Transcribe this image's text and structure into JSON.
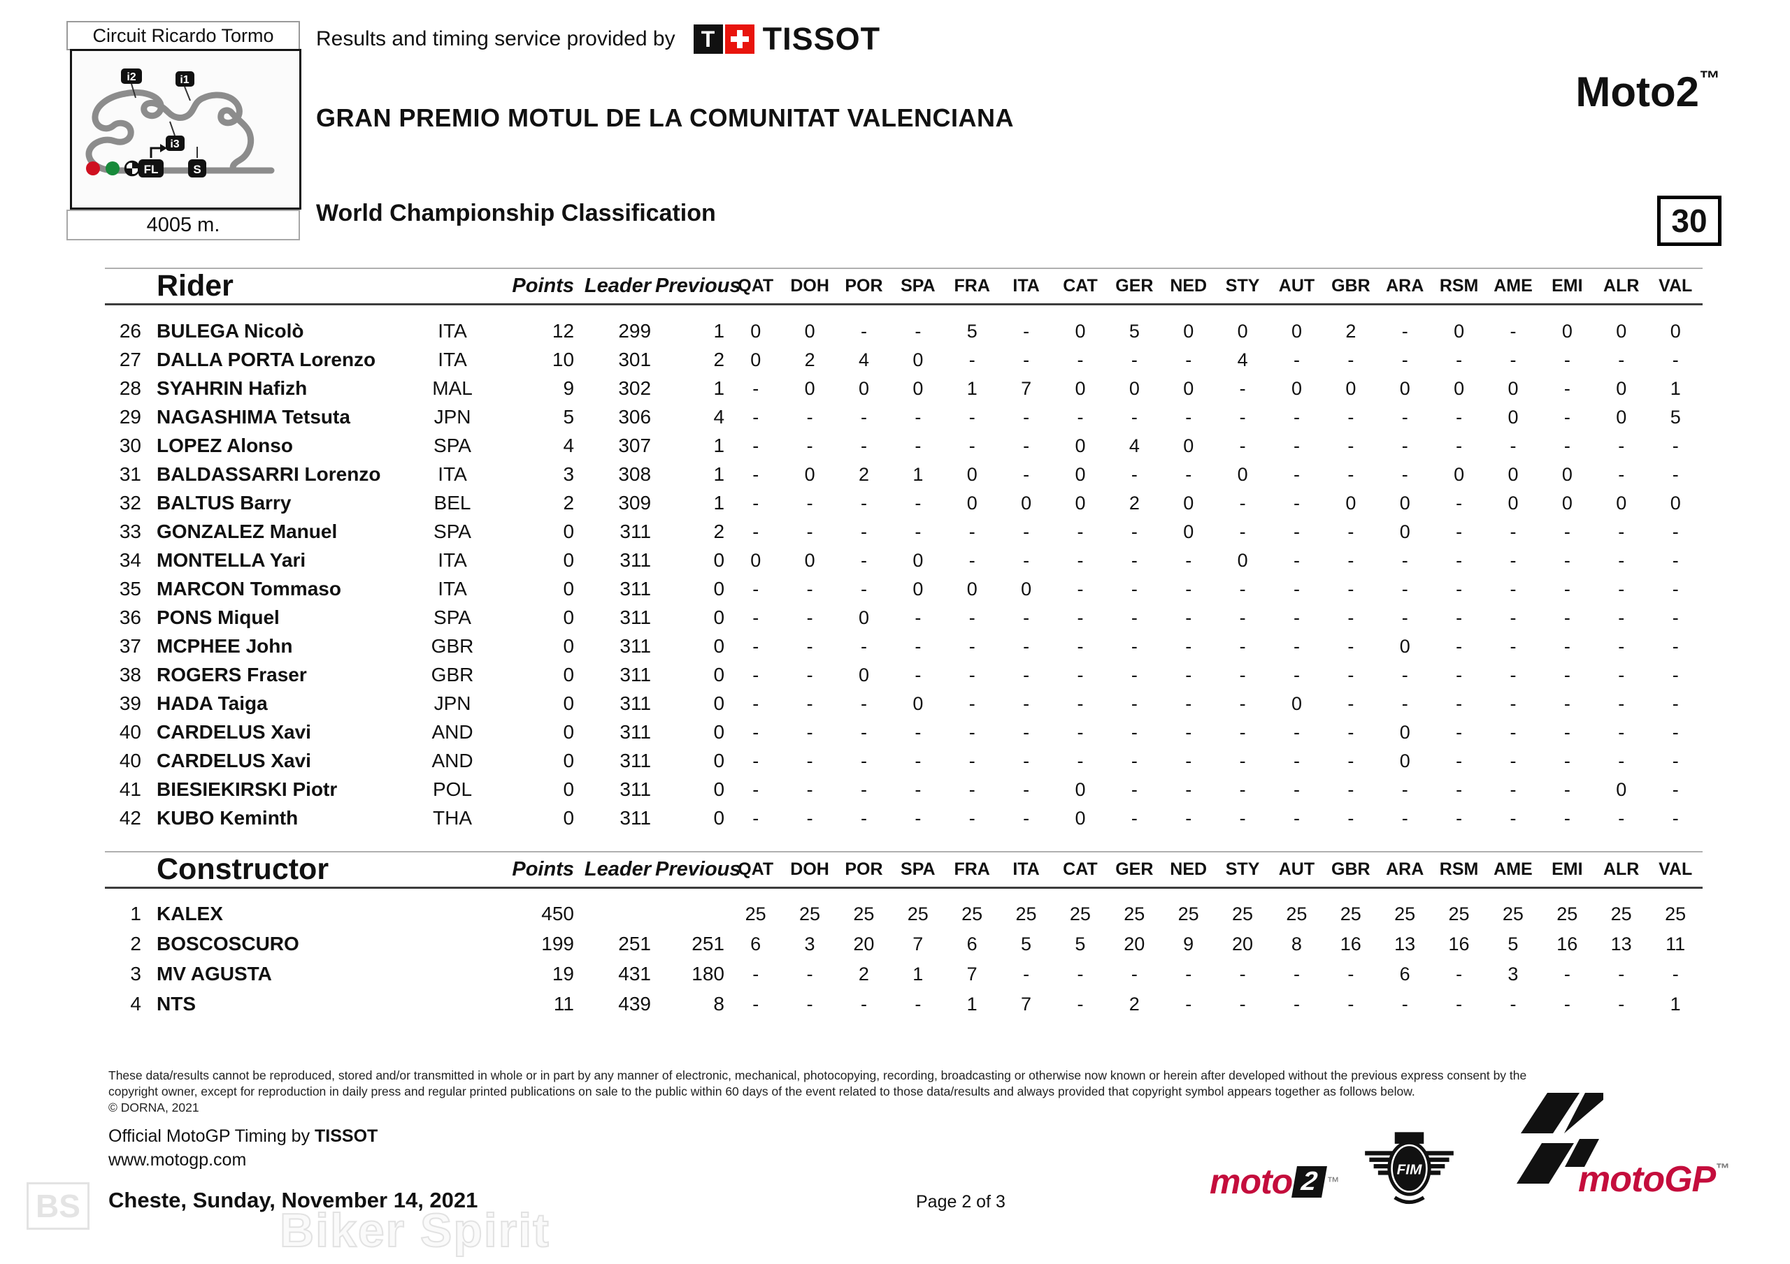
{
  "colors": {
    "tissot_red": "#e8140c",
    "brand_crimson": "#c40d3c",
    "track_gray": "#8c8c8c"
  },
  "header": {
    "circuit_name": "Circuit Ricardo Tormo",
    "track_length": "4005 m.",
    "provided_by": "Results and timing service provided by",
    "tissot_t": "T",
    "tissot_brand": "TISSOT",
    "event_title": "GRAN PREMIO MOTUL DE LA COMUNITAT VALENCIANA",
    "class_name": "Moto2",
    "class_tm": "™",
    "subtitle": "World Championship Classification",
    "session_number": "30",
    "track_markers": {
      "i1": "i1",
      "i2": "i2",
      "i3": "i3",
      "fl": "FL",
      "s": "S"
    }
  },
  "races": [
    "QAT",
    "DOH",
    "POR",
    "SPA",
    "FRA",
    "ITA",
    "CAT",
    "GER",
    "NED",
    "STY",
    "AUT",
    "GBR",
    "ARA",
    "RSM",
    "AME",
    "EMI",
    "ALR",
    "VAL"
  ],
  "rider_table": {
    "title": "Rider",
    "points_label": "Points",
    "leader_label": "Leader",
    "previous_label": "Previous",
    "rows": [
      {
        "pos": "26",
        "name": "BULEGA Nicolò",
        "nation": "ITA",
        "points": "12",
        "leader": "299",
        "previous": "1",
        "results": [
          "0",
          "0",
          "-",
          "-",
          "5",
          "-",
          "0",
          "5",
          "0",
          "0",
          "0",
          "2",
          "-",
          "0",
          "-",
          "0",
          "0",
          "0"
        ]
      },
      {
        "pos": "27",
        "name": "DALLA PORTA Lorenzo",
        "nation": "ITA",
        "points": "10",
        "leader": "301",
        "previous": "2",
        "results": [
          "0",
          "2",
          "4",
          "0",
          "-",
          "-",
          "-",
          "-",
          "-",
          "4",
          "-",
          "-",
          "-",
          "-",
          "-",
          "-",
          "-",
          "-"
        ]
      },
      {
        "pos": "28",
        "name": "SYAHRIN Hafizh",
        "nation": "MAL",
        "points": "9",
        "leader": "302",
        "previous": "1",
        "results": [
          "-",
          "0",
          "0",
          "0",
          "1",
          "7",
          "0",
          "0",
          "0",
          "-",
          "0",
          "0",
          "0",
          "0",
          "0",
          "-",
          "0",
          "1"
        ]
      },
      {
        "pos": "29",
        "name": "NAGASHIMA Tetsuta",
        "nation": "JPN",
        "points": "5",
        "leader": "306",
        "previous": "4",
        "results": [
          "-",
          "-",
          "-",
          "-",
          "-",
          "-",
          "-",
          "-",
          "-",
          "-",
          "-",
          "-",
          "-",
          "-",
          "0",
          "-",
          "0",
          "5"
        ]
      },
      {
        "pos": "30",
        "name": "LOPEZ Alonso",
        "nation": "SPA",
        "points": "4",
        "leader": "307",
        "previous": "1",
        "results": [
          "-",
          "-",
          "-",
          "-",
          "-",
          "-",
          "0",
          "4",
          "0",
          "-",
          "-",
          "-",
          "-",
          "-",
          "-",
          "-",
          "-",
          "-"
        ]
      },
      {
        "pos": "31",
        "name": "BALDASSARRI Lorenzo",
        "nation": "ITA",
        "points": "3",
        "leader": "308",
        "previous": "1",
        "results": [
          "-",
          "0",
          "2",
          "1",
          "0",
          "-",
          "0",
          "-",
          "-",
          "0",
          "-",
          "-",
          "-",
          "0",
          "0",
          "0",
          "-",
          "-"
        ]
      },
      {
        "pos": "32",
        "name": "BALTUS Barry",
        "nation": "BEL",
        "points": "2",
        "leader": "309",
        "previous": "1",
        "results": [
          "-",
          "-",
          "-",
          "-",
          "0",
          "0",
          "0",
          "2",
          "0",
          "-",
          "-",
          "0",
          "0",
          "-",
          "0",
          "0",
          "0",
          "0"
        ]
      },
      {
        "pos": "33",
        "name": "GONZALEZ Manuel",
        "nation": "SPA",
        "points": "0",
        "leader": "311",
        "previous": "2",
        "results": [
          "-",
          "-",
          "-",
          "-",
          "-",
          "-",
          "-",
          "-",
          "0",
          "-",
          "-",
          "-",
          "0",
          "-",
          "-",
          "-",
          "-",
          "-"
        ]
      },
      {
        "pos": "34",
        "name": "MONTELLA Yari",
        "nation": "ITA",
        "points": "0",
        "leader": "311",
        "previous": "0",
        "results": [
          "0",
          "0",
          "-",
          "0",
          "-",
          "-",
          "-",
          "-",
          "-",
          "0",
          "-",
          "-",
          "-",
          "-",
          "-",
          "-",
          "-",
          "-"
        ]
      },
      {
        "pos": "35",
        "name": "MARCON Tommaso",
        "nation": "ITA",
        "points": "0",
        "leader": "311",
        "previous": "0",
        "results": [
          "-",
          "-",
          "-",
          "0",
          "0",
          "0",
          "-",
          "-",
          "-",
          "-",
          "-",
          "-",
          "-",
          "-",
          "-",
          "-",
          "-",
          "-"
        ]
      },
      {
        "pos": "36",
        "name": "PONS Miquel",
        "nation": "SPA",
        "points": "0",
        "leader": "311",
        "previous": "0",
        "results": [
          "-",
          "-",
          "0",
          "-",
          "-",
          "-",
          "-",
          "-",
          "-",
          "-",
          "-",
          "-",
          "-",
          "-",
          "-",
          "-",
          "-",
          "-"
        ]
      },
      {
        "pos": "37",
        "name": "MCPHEE John",
        "nation": "GBR",
        "points": "0",
        "leader": "311",
        "previous": "0",
        "results": [
          "-",
          "-",
          "-",
          "-",
          "-",
          "-",
          "-",
          "-",
          "-",
          "-",
          "-",
          "-",
          "0",
          "-",
          "-",
          "-",
          "-",
          "-"
        ]
      },
      {
        "pos": "38",
        "name": "ROGERS Fraser",
        "nation": "GBR",
        "points": "0",
        "leader": "311",
        "previous": "0",
        "results": [
          "-",
          "-",
          "0",
          "-",
          "-",
          "-",
          "-",
          "-",
          "-",
          "-",
          "-",
          "-",
          "-",
          "-",
          "-",
          "-",
          "-",
          "-"
        ]
      },
      {
        "pos": "39",
        "name": "HADA Taiga",
        "nation": "JPN",
        "points": "0",
        "leader": "311",
        "previous": "0",
        "results": [
          "-",
          "-",
          "-",
          "0",
          "-",
          "-",
          "-",
          "-",
          "-",
          "-",
          "0",
          "-",
          "-",
          "-",
          "-",
          "-",
          "-",
          "-"
        ]
      },
      {
        "pos": "40",
        "name": "CARDELUS Xavi",
        "nation": "AND",
        "points": "0",
        "leader": "311",
        "previous": "0",
        "results": [
          "-",
          "-",
          "-",
          "-",
          "-",
          "-",
          "-",
          "-",
          "-",
          "-",
          "-",
          "-",
          "0",
          "-",
          "-",
          "-",
          "-",
          "-"
        ]
      },
      {
        "pos": "40",
        "name": "CARDELUS Xavi",
        "nation": "AND",
        "points": "0",
        "leader": "311",
        "previous": "0",
        "results": [
          "-",
          "-",
          "-",
          "-",
          "-",
          "-",
          "-",
          "-",
          "-",
          "-",
          "-",
          "-",
          "0",
          "-",
          "-",
          "-",
          "-",
          "-"
        ]
      },
      {
        "pos": "41",
        "name": "BIESIEKIRSKI Piotr",
        "nation": "POL",
        "points": "0",
        "leader": "311",
        "previous": "0",
        "results": [
          "-",
          "-",
          "-",
          "-",
          "-",
          "-",
          "0",
          "-",
          "-",
          "-",
          "-",
          "-",
          "-",
          "-",
          "-",
          "-",
          "0",
          "-"
        ]
      },
      {
        "pos": "42",
        "name": "KUBO Keminth",
        "nation": "THA",
        "points": "0",
        "leader": "311",
        "previous": "0",
        "results": [
          "-",
          "-",
          "-",
          "-",
          "-",
          "-",
          "0",
          "-",
          "-",
          "-",
          "-",
          "-",
          "-",
          "-",
          "-",
          "-",
          "-",
          "-"
        ]
      }
    ]
  },
  "constructor_table": {
    "title": "Constructor",
    "points_label": "Points",
    "leader_label": "Leader",
    "previous_label": "Previous",
    "rows": [
      {
        "pos": "1",
        "name": "KALEX",
        "nation": "",
        "points": "450",
        "leader": "",
        "previous": "",
        "results": [
          "25",
          "25",
          "25",
          "25",
          "25",
          "25",
          "25",
          "25",
          "25",
          "25",
          "25",
          "25",
          "25",
          "25",
          "25",
          "25",
          "25",
          "25"
        ]
      },
      {
        "pos": "2",
        "name": "BOSCOSCURO",
        "nation": "",
        "points": "199",
        "leader": "251",
        "previous": "251",
        "results": [
          "6",
          "3",
          "20",
          "7",
          "6",
          "5",
          "5",
          "20",
          "9",
          "20",
          "8",
          "16",
          "13",
          "16",
          "5",
          "16",
          "13",
          "11"
        ]
      },
      {
        "pos": "3",
        "name": "MV AGUSTA",
        "nation": "",
        "points": "19",
        "leader": "431",
        "previous": "180",
        "results": [
          "-",
          "-",
          "2",
          "1",
          "7",
          "-",
          "-",
          "-",
          "-",
          "-",
          "-",
          "-",
          "6",
          "-",
          "3",
          "-",
          "-",
          "-"
        ]
      },
      {
        "pos": "4",
        "name": "NTS",
        "nation": "",
        "points": "11",
        "leader": "439",
        "previous": "8",
        "results": [
          "-",
          "-",
          "-",
          "-",
          "1",
          "7",
          "-",
          "2",
          "-",
          "-",
          "-",
          "-",
          "-",
          "-",
          "-",
          "-",
          "-",
          "1"
        ]
      }
    ]
  },
  "footer": {
    "legal_line1": "These data/results cannot be reproduced, stored and/or transmitted in whole or in part by any manner of electronic, mechanical, photocopying, recording, broadcasting or otherwise now known or herein after developed without the previous express consent by the",
    "legal_line2": "copyright owner, except for reproduction in daily press and regular printed publications on sale to the public within 60 days of the event related to those data/results and always provided that copyright symbol appears together as follows below.",
    "copyright": "© DORNA, 2021",
    "timing_prefix": "Official MotoGP Timing by ",
    "timing_brand": "TISSOT",
    "website": "www.motogp.com",
    "location_date": "Cheste, Sunday, November 14, 2021",
    "page": "Page 2 of 3",
    "moto2_prefix": "moto",
    "moto2_suffix": "2",
    "tm": "™",
    "fim_logo": "FIM",
    "motogp_logo": "motoGP"
  },
  "watermark": {
    "badge": "BS",
    "text": "Biker Spirit"
  }
}
